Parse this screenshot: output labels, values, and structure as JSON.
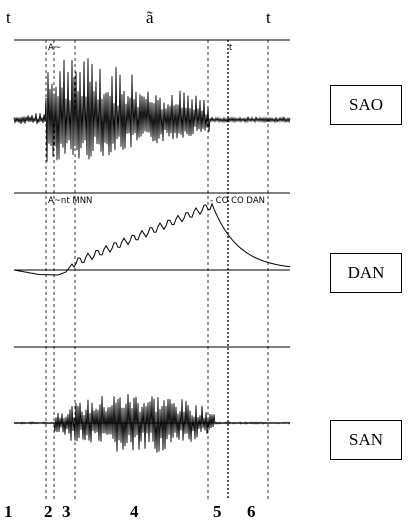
{
  "header": {
    "segments": [
      "t",
      "ã",
      "t"
    ]
  },
  "channels": {
    "sao": {
      "label": "SAO"
    },
    "dan": {
      "label": "DAN"
    },
    "san": {
      "label": "SAN"
    }
  },
  "markers": {
    "sao_left": "A~",
    "sao_right": "t",
    "dan_left": "A~nt MNN",
    "dan_right": "- CO CO DAN"
  },
  "intervals": {
    "labels": [
      "1",
      "2",
      "3",
      "4",
      "5",
      "6"
    ]
  }
}
